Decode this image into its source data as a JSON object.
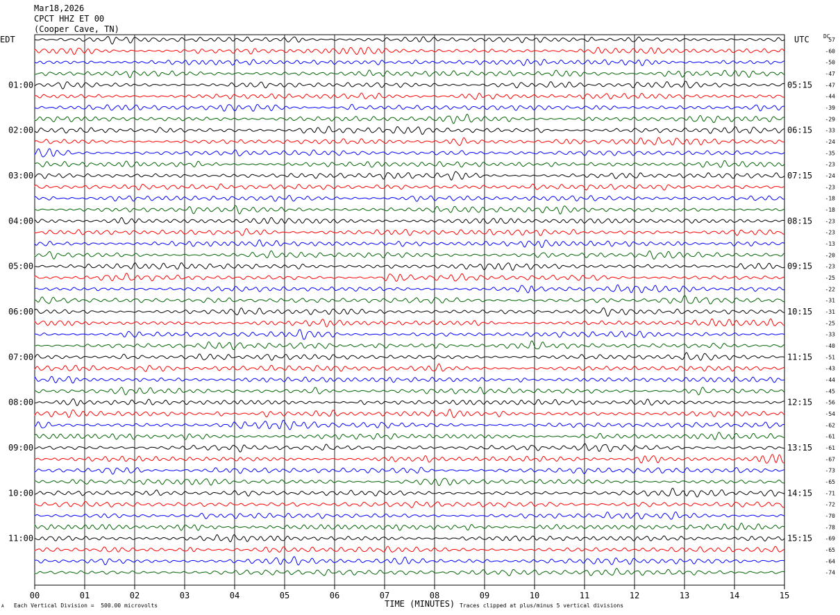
{
  "header": {
    "date": "Mar18,2026",
    "station": "CPCT HHZ ET 00",
    "location": "(Cooper Cave, TN)",
    "left_tz": "EDT",
    "right_tz": "UTC",
    "dc_label": "DC"
  },
  "footer": {
    "xlabel": "TIME (MINUTES)",
    "scale_note": "Each Vertical Division =  500.00 microvolts",
    "clip_note": "Traces clipped at plus/minus 5 vertical divisions",
    "corner_mark": "A"
  },
  "chart_data": {
    "type": "line",
    "subtype": "helicorder",
    "title": "CPCT HHZ ET 00",
    "xlabel": "TIME (MINUTES)",
    "x_ticks": [
      "00",
      "01",
      "02",
      "03",
      "04",
      "05",
      "06",
      "07",
      "08",
      "09",
      "10",
      "11",
      "12",
      "13",
      "14",
      "15"
    ],
    "x_range": [
      0,
      15
    ],
    "grid": true,
    "trace_colors": [
      "#000000",
      "#ff0000",
      "#0000ff",
      "#006400"
    ],
    "left_hour_labels": [
      "01:00",
      "02:00",
      "03:00",
      "04:00",
      "05:00",
      "06:00",
      "07:00",
      "08:00",
      "09:00",
      "10:00",
      "11:00"
    ],
    "right_hour_labels": [
      "05:15",
      "06:15",
      "07:15",
      "08:15",
      "09:15",
      "10:15",
      "11:15",
      "12:15",
      "13:15",
      "14:15",
      "15:15"
    ],
    "dc_offsets": [
      57,
      -60,
      -50,
      -47,
      -47,
      -44,
      -39,
      -29,
      -33,
      -24,
      -35,
      -23,
      -24,
      -23,
      -18,
      -18,
      -23,
      -23,
      -13,
      -20,
      -23,
      -25,
      -22,
      -31,
      -31,
      -25,
      -33,
      -40,
      -51,
      -43,
      -44,
      -45,
      -56,
      -54,
      -62,
      -61,
      -61,
      -67,
      -73,
      -65,
      -71,
      -72,
      -70,
      -78,
      -69,
      -65,
      -64,
      -74
    ],
    "trace_count": 48,
    "scale_microvolts_per_division": 500.0,
    "clip_divisions": 5
  }
}
